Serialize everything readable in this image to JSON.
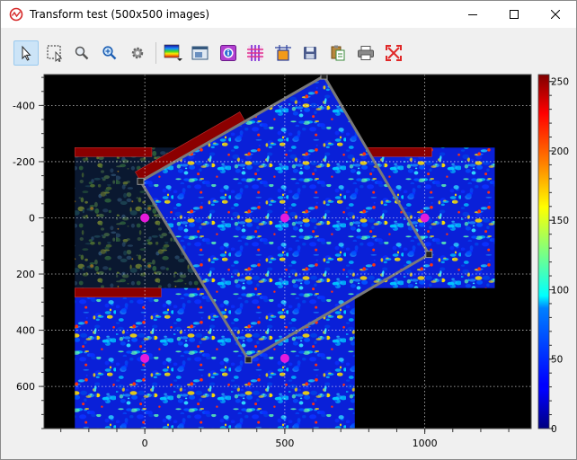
{
  "window": {
    "title": "Transform test (500x500 images)"
  },
  "toolbar": {
    "buttons": [
      {
        "name": "select-tool",
        "icon": "cursor-arrow-icon",
        "active": true
      },
      {
        "name": "rect-zoom-tool",
        "icon": "select-rect-icon",
        "active": false
      },
      {
        "name": "zoom-tool",
        "icon": "magnifier-icon",
        "active": false
      },
      {
        "name": "zoom-fit-tool",
        "icon": "magnifier-fit-icon",
        "active": false
      },
      {
        "name": "settings-tool",
        "icon": "gear-icon",
        "active": false
      },
      {
        "name": "colormap-tool",
        "icon": "colormap-icon",
        "active": false
      },
      {
        "name": "image-tool",
        "icon": "image-window-icon",
        "active": false
      },
      {
        "name": "info-tool",
        "icon": "info-icon",
        "active": false
      },
      {
        "name": "grid-tool",
        "icon": "grid-icon",
        "active": false
      },
      {
        "name": "shape-tool",
        "icon": "shape-icon",
        "active": false
      },
      {
        "name": "save-tool",
        "icon": "floppy-icon",
        "active": false
      },
      {
        "name": "copy-tool",
        "icon": "copy-icon",
        "active": false
      },
      {
        "name": "print-tool",
        "icon": "printer-icon",
        "active": false
      },
      {
        "name": "fullscreen-tool",
        "icon": "fullscreen-icon",
        "active": false
      }
    ]
  },
  "plot": {
    "x_ticks": [
      0,
      500,
      1000
    ],
    "y_ticks": [
      -400,
      -200,
      0,
      200,
      400,
      600
    ],
    "x_range": [
      -360,
      1380
    ],
    "y_range": [
      -510,
      750
    ],
    "colorbar_ticks": [
      0,
      50,
      100,
      150,
      200,
      250
    ],
    "colorbar_range": [
      0,
      255
    ],
    "colormap": "jet",
    "grid": true,
    "images": [
      {
        "name": "image-top-left",
        "x": [
          -250,
          250
        ],
        "y": [
          -250,
          250
        ],
        "style": "dim"
      },
      {
        "name": "image-top-right",
        "x": [
          750,
          1250
        ],
        "y": [
          -250,
          250
        ],
        "style": "bright"
      },
      {
        "name": "image-bottom-left",
        "x": [
          -250,
          750
        ],
        "y": [
          250,
          750
        ],
        "style": "bright"
      },
      {
        "name": "image-rotated",
        "corners": [
          [
            -15,
            -130
          ],
          [
            640,
            -505
          ],
          [
            1015,
            130
          ],
          [
            370,
            505
          ]
        ],
        "style": "bright"
      }
    ],
    "markers": [
      {
        "x": 0,
        "y": 0
      },
      {
        "x": 500,
        "y": 0
      },
      {
        "x": 1000,
        "y": 0
      },
      {
        "x": 0,
        "y": 500
      },
      {
        "x": 500,
        "y": 500
      }
    ],
    "colors": {
      "background": "#000000",
      "marker": "#e61adc",
      "frame": "#7a7a7a",
      "label_bar": "#8b0000",
      "grid": "#ffffff"
    }
  }
}
